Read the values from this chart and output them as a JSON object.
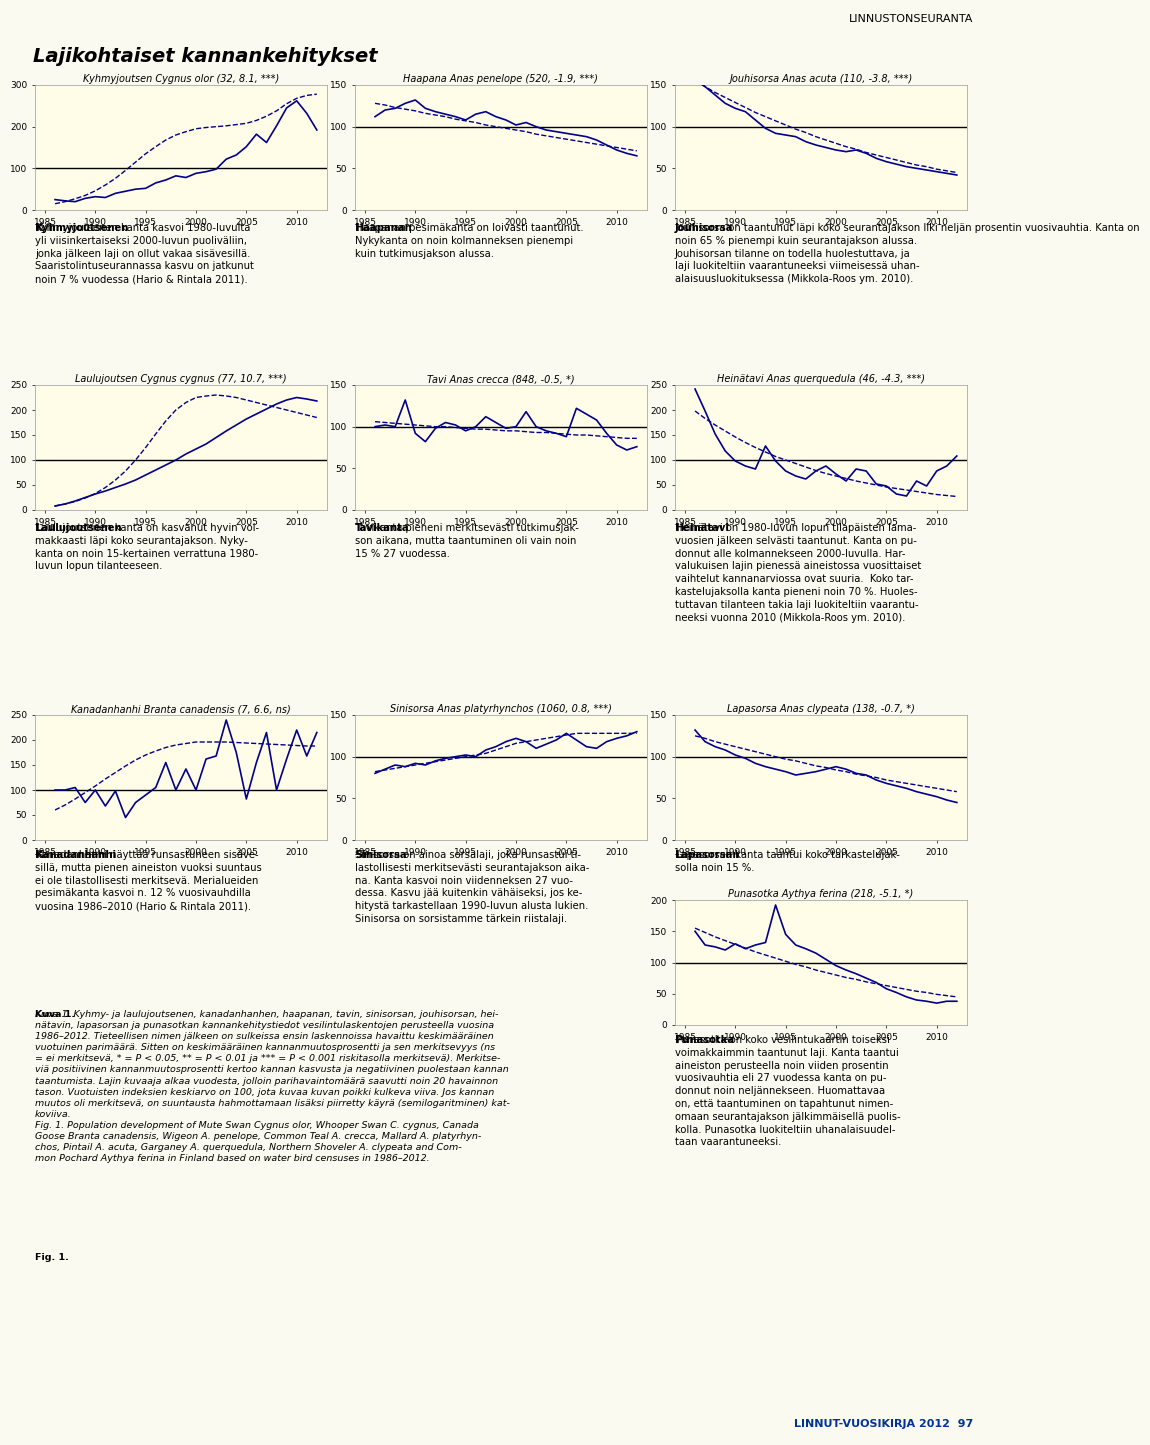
{
  "page_title": "LINNUSTONSEURANTA",
  "main_title": "Lajikohtaiset kannankehitykset",
  "background_color": "#FAFAF0",
  "plot_bg_color": "#FFFCE8",
  "line_color": "#00008B",
  "trend_color": "#00008B",
  "years": [
    1986,
    1987,
    1988,
    1989,
    1990,
    1991,
    1992,
    1993,
    1994,
    1995,
    1996,
    1997,
    1998,
    1999,
    2000,
    2001,
    2002,
    2003,
    2004,
    2005,
    2006,
    2007,
    2008,
    2009,
    2010,
    2011,
    2012
  ],
  "charts": [
    {
      "title": "Kyhmyjoutsen Cygnus olor (32, 8.1, ***)",
      "ylim": [
        0,
        300
      ],
      "yticks": [
        0,
        100,
        200,
        300
      ],
      "data": [
        25,
        22,
        20,
        28,
        32,
        30,
        40,
        45,
        50,
        52,
        65,
        72,
        82,
        78,
        88,
        92,
        98,
        122,
        132,
        152,
        182,
        162,
        202,
        245,
        262,
        232,
        192
      ],
      "trend": [
        15,
        20,
        27,
        35,
        46,
        60,
        76,
        95,
        115,
        135,
        152,
        168,
        180,
        188,
        195,
        198,
        200,
        202,
        205,
        208,
        215,
        225,
        238,
        255,
        268,
        275,
        278
      ],
      "ref_val": 100,
      "bold": "Kyhmyjoutsenen",
      "text": "Kyhmyjoutsenen kanta kasvoi 1980-luvulta\nyli viisinkertaiseksi 2000-luvun puoliväliin,\njonka jälkeen laji on ollut vakaa sisävesillä.\nSaaristolintuseurannassa kasvu on jatkunut\nnoin 7 % vuodessa (Hario & Rintala 2011)."
    },
    {
      "title": "Haapana Anas penelope (520, -1.9, ***)",
      "ylim": [
        0,
        150
      ],
      "yticks": [
        0,
        50,
        100,
        150
      ],
      "data": [
        112,
        120,
        122,
        128,
        132,
        122,
        118,
        115,
        112,
        108,
        115,
        118,
        112,
        108,
        102,
        105,
        100,
        96,
        94,
        92,
        90,
        88,
        84,
        78,
        72,
        68,
        65
      ],
      "trend": [
        128,
        126,
        123,
        121,
        119,
        116,
        114,
        112,
        109,
        107,
        105,
        102,
        100,
        98,
        96,
        94,
        91,
        89,
        87,
        85,
        83,
        81,
        79,
        77,
        75,
        73,
        71
      ],
      "ref_val": 100,
      "bold": "Haapanan",
      "text": "Haapanan pesimäkanta on loivasti taantunut.\nNykykanta on noin kolmanneksen pienempi\nkuin tutkimusjakson alussa."
    },
    {
      "title": "Jouhisorsa Anas acuta (110, -3.8, ***)",
      "ylim": [
        0,
        150
      ],
      "yticks": [
        0,
        50,
        100,
        150
      ],
      "data": [
        158,
        148,
        138,
        128,
        122,
        118,
        108,
        98,
        92,
        90,
        88,
        82,
        78,
        75,
        72,
        70,
        72,
        68,
        62,
        58,
        55,
        52,
        50,
        48,
        46,
        44,
        42
      ],
      "trend": [
        155,
        148,
        141,
        135,
        129,
        123,
        117,
        112,
        107,
        102,
        97,
        93,
        88,
        84,
        80,
        76,
        73,
        69,
        66,
        63,
        60,
        57,
        54,
        52,
        49,
        47,
        45
      ],
      "ref_val": 100,
      "bold": "Jouhisorsa",
      "text": "Jouhisorsa on taantunut läpi koko seurantajakson liki neljän prosentin vuosivauhtia. Kanta on\nnoin 65 % pienempi kuin seurantajakson alussa.\nJouhisorsan tilanne on todella huolestuttava, ja\nlaji luokiteltiin vaarantuneeksi viimeisessä uhan-\nalaisuusluokituksessa (Mikkola-Roos ym. 2010)."
    },
    {
      "title": "Laulujoutsen Cygnus cygnus (77, 10.7, ***)",
      "ylim": [
        0,
        250
      ],
      "yticks": [
        0,
        50,
        100,
        150,
        200,
        250
      ],
      "data": [
        8,
        12,
        18,
        25,
        32,
        38,
        45,
        52,
        60,
        70,
        80,
        90,
        100,
        112,
        122,
        132,
        145,
        158,
        170,
        182,
        192,
        202,
        212,
        220,
        225,
        222,
        218
      ],
      "trend": [
        8,
        12,
        17,
        24,
        33,
        45,
        60,
        78,
        100,
        125,
        152,
        178,
        200,
        215,
        225,
        228,
        230,
        228,
        225,
        220,
        215,
        210,
        205,
        200,
        195,
        190,
        185
      ],
      "ref_val": 100,
      "bold": "Laulujoutsenen",
      "text": "Laulujoutsenen kanta on kasvanut hyvin voi-\nmakkaasti läpi koko seurantajakson. Nyky-\nkanta on noin 15-kertainen verrattuna 1980-\nluvun lopun tilanteeseen."
    },
    {
      "title": "Tavi Anas crecca (848, -0.5, *)",
      "ylim": [
        0,
        150
      ],
      "yticks": [
        0,
        50,
        100,
        150
      ],
      "data": [
        100,
        102,
        100,
        132,
        92,
        82,
        98,
        105,
        102,
        95,
        100,
        112,
        105,
        98,
        100,
        118,
        100,
        95,
        92,
        88,
        122,
        115,
        108,
        92,
        78,
        72,
        76
      ],
      "trend": [
        106,
        105,
        104,
        103,
        102,
        101,
        100,
        100,
        99,
        98,
        97,
        97,
        96,
        95,
        95,
        94,
        93,
        93,
        92,
        91,
        90,
        90,
        89,
        88,
        87,
        86,
        86
      ],
      "ref_val": 100,
      "bold": "Tavikanta",
      "text": "Tavikanta pieneni merkitsevästi tutkimusjak-\nson aikana, mutta taantuminen oli vain noin\n15 % 27 vuodessa."
    },
    {
      "title": "Heinätavi Anas querquedula (46, -4.3, ***)",
      "ylim": [
        0,
        250
      ],
      "yticks": [
        0,
        50,
        100,
        150,
        200,
        250
      ],
      "data": [
        242,
        198,
        152,
        118,
        98,
        88,
        82,
        128,
        98,
        78,
        68,
        62,
        78,
        88,
        72,
        58,
        82,
        78,
        52,
        48,
        32,
        28,
        58,
        48,
        78,
        88,
        108
      ],
      "trend": [
        198,
        183,
        170,
        158,
        146,
        135,
        125,
        116,
        107,
        100,
        93,
        86,
        79,
        73,
        68,
        63,
        58,
        54,
        50,
        46,
        43,
        40,
        37,
        34,
        31,
        29,
        27
      ],
      "ref_val": 100,
      "bold": "Heinätavi",
      "text": "Heinätavi on 1980-luvun lopun tilapäisten lama-\nvuosien jälkeen selvästi taantunut. Kanta on pu-\ndonnut alle kolmannekseen 2000-luvulla. Har-\nvalukuisen lajin pienessä aineistossa vuosittaiset\nvaihtelut kannanarviossa ovat suuria.  Koko tar-\nkastelujaksolla kanta pieneni noin 70 %. Huoles-\ntuttavan tilanteen takia laji luokiteltiin vaarantu-\nneeksi vuonna 2010 (Mikkola-Roos ym. 2010)."
    },
    {
      "title": "Kanadanhanhi Branta canadensis (7, 6.6, ns)",
      "ylim": [
        0,
        250
      ],
      "yticks": [
        0,
        50,
        100,
        150,
        200,
        250
      ],
      "data": [
        100,
        100,
        105,
        75,
        100,
        68,
        98,
        45,
        75,
        90,
        105,
        155,
        100,
        142,
        100,
        162,
        168,
        240,
        175,
        82,
        155,
        215,
        100,
        162,
        220,
        168,
        215
      ],
      "trend": [
        60,
        70,
        82,
        95,
        108,
        122,
        135,
        148,
        160,
        170,
        178,
        185,
        190,
        193,
        196,
        196,
        196,
        196,
        195,
        194,
        193,
        192,
        191,
        190,
        189,
        188,
        188
      ],
      "ref_val": 100,
      "bold": "Kanadanhanhi",
      "text": "Kanadanhanhi näyttää runsastuneen sisäve-\nsillä, mutta pienen aineiston vuoksi suuntaus\nei ole tilastollisesti merkitsevä. Merialueiden\npesimäkanta kasvoi n. 12 % vuosivauhdilla\nvuosina 1986–2010 (Hario & Rintala 2011)."
    },
    {
      "title": "Sinisorsa Anas platyrhynchos (1060, 0.8, ***)",
      "ylim": [
        0,
        150
      ],
      "yticks": [
        0,
        50,
        100,
        150
      ],
      "data": [
        80,
        85,
        90,
        88,
        92,
        90,
        95,
        98,
        100,
        102,
        100,
        108,
        112,
        118,
        122,
        118,
        110,
        115,
        120,
        128,
        120,
        112,
        110,
        118,
        122,
        125,
        130
      ],
      "trend": [
        82,
        84,
        86,
        88,
        90,
        92,
        94,
        96,
        98,
        100,
        102,
        104,
        108,
        112,
        116,
        118,
        120,
        122,
        124,
        126,
        128,
        128,
        128,
        128,
        128,
        128,
        128
      ],
      "ref_val": 100,
      "bold": "Sinisorsa",
      "text": "Sinisorsa on ainoa sorsalaji, joka runsastui ti-\nlastollisesti merkitsevästi seurantajakson aika-\nna. Kanta kasvoi noin viidenneksen 27 vuo-\ndessa. Kasvu jää kuitenkin vähäiseksi, jos ke-\nhitystä tarkastellaan 1990-luvun alusta lukien.\nSinisorsa on sorsistamme tärkein riistalaji."
    },
    {
      "title": "Lapasorsa Anas clypeata (138, -0.7, *)",
      "ylim": [
        0,
        150
      ],
      "yticks": [
        0,
        50,
        100,
        150
      ],
      "data": [
        132,
        118,
        112,
        108,
        102,
        98,
        92,
        88,
        85,
        82,
        78,
        80,
        82,
        85,
        88,
        85,
        80,
        78,
        72,
        68,
        65,
        62,
        58,
        55,
        52,
        48,
        45
      ],
      "trend": [
        125,
        122,
        118,
        115,
        112,
        109,
        106,
        103,
        100,
        97,
        95,
        92,
        89,
        87,
        84,
        82,
        79,
        77,
        75,
        72,
        70,
        68,
        66,
        64,
        62,
        60,
        58
      ],
      "ref_val": 100,
      "bold": "Lapasorsan",
      "text": "Lapasorsan kanta taantui koko tarkastelujak-\nsolla noin 15 %."
    },
    {
      "title": "Punasotka Aythya ferina (218, -5.1, *)",
      "ylim": [
        0,
        200
      ],
      "yticks": [
        0,
        50,
        100,
        150,
        200
      ],
      "data": [
        150,
        128,
        125,
        120,
        130,
        122,
        128,
        132,
        192,
        145,
        128,
        122,
        115,
        105,
        95,
        88,
        82,
        75,
        68,
        58,
        52,
        45,
        40,
        38,
        35,
        38,
        38
      ],
      "trend": [
        155,
        148,
        141,
        135,
        129,
        123,
        117,
        112,
        107,
        102,
        97,
        93,
        88,
        84,
        80,
        76,
        73,
        69,
        66,
        63,
        60,
        57,
        54,
        52,
        49,
        47,
        45
      ],
      "ref_val": 100,
      "bold": "Punasotka",
      "text": "Punasotka on koko vesilintukaartin toiseksi\nvoimakkaimmin taantunut laji. Kanta taantui\naineiston perusteella noin viiden prosentin\nvuosivauhtia eli 27 vuodessa kanta on pu-\ndonnut noin neljännekseen. Huomattavaa\non, että taantuminen on tapahtunut nimen-\nomaan seurantajakson jälkimmäisellä puolis-\nkolla. Punasotka luokiteltiin uhanalaisuudel-\ntaan vaarantuneeksi."
    }
  ],
  "caption_bold": "Kuva 1.",
  "caption_text": " Kyhmy- ja laulujoutsenen, kanadanhanhen, haapanan, tavin, sinisorsan, jouhisorsan, hei-\nnätavin, lapasorsan ja punasotkan kannankehitystiedot vesilintulaskentojen perusteella vuosina\n1986–2012. Tieteellisen nimen jälkeen on sulkeissa ensin laskennoissa havaittu keskimääräinen\nvuotuinen parimäärä. Sitten on keskimääräinen kannanmuutosprosentti ja sen merkitsevyys (ns\n= ei merkitsevä, * = P < 0.05, ** = P < 0.01 ja *** = P < 0.001 riskitasolla merkitsevä). Merkitse-\nviä positiivinen kannanmuutosprosentti kertoo kannan kasvusta ja negatiivinen puolestaan kannan\ntaantumista. Lajin kuvaaja alkaa vuodesta, jolloin parihavaintomäärä saavutti noin 20 havainnon\ntason. Vuotuisten indeksien keskiarvo on 100, jota kuvaa kuvan poikki kulkeva viiva. Jos kannan\nmuutos oli merkitsevä, on suuntausta hahmottamaan lisäksi piirretty käyrä (semilogaritminen) kat-\nkoviiva.",
  "caption_fig_bold": "Fig. 1.",
  "caption_fig_text": " Population development of Mute Swan Cygnus olor, Whooper Swan C. cygnus, Canada\nGoose Branta canadensis, Wigeon A. penelope, Common Teal A. crecca, Mallard A. platyrhyn-\nchos, Pintail A. acuta, Garganey A. querquedula, Northern Shoveler A. clypeata and Com-\nmon Pochard Aythya ferina in Finland based on water bird censuses in 1986–2012.",
  "footer": "LINNUT-VUOSIKIRJA 2012",
  "footer_page": "97"
}
